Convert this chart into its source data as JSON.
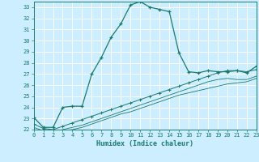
{
  "xlabel": "Humidex (Indice chaleur)",
  "background_color": "#cceeff",
  "grid_color": "#ffffff",
  "line_color": "#1a7a6e",
  "xlim": [
    0,
    23
  ],
  "ylim": [
    22,
    33.5
  ],
  "yticks": [
    22,
    23,
    24,
    25,
    26,
    27,
    28,
    29,
    30,
    31,
    32,
    33
  ],
  "xticks": [
    0,
    1,
    2,
    3,
    4,
    5,
    6,
    7,
    8,
    9,
    10,
    11,
    12,
    13,
    14,
    15,
    16,
    17,
    18,
    19,
    20,
    21,
    22,
    23
  ],
  "series1_x": [
    0,
    1,
    2,
    3,
    4,
    5,
    6,
    7,
    8,
    9,
    10,
    11,
    12,
    13,
    14,
    15,
    16,
    17,
    18,
    19,
    20,
    21,
    22,
    23
  ],
  "series1_y": [
    23.1,
    22.2,
    22.2,
    24.0,
    24.1,
    24.1,
    27.0,
    28.5,
    30.3,
    31.5,
    33.2,
    33.5,
    33.0,
    32.8,
    32.6,
    28.9,
    27.2,
    27.1,
    27.3,
    27.2,
    27.2,
    27.3,
    27.1,
    27.7
  ],
  "series2_x": [
    0,
    1,
    2,
    3,
    4,
    5,
    6,
    7,
    8,
    9,
    10,
    11,
    12,
    13,
    14,
    15,
    16,
    17,
    18,
    19,
    20,
    21,
    22,
    23
  ],
  "series2_y": [
    22.5,
    22.1,
    22.0,
    22.3,
    22.6,
    22.9,
    23.2,
    23.5,
    23.8,
    24.1,
    24.4,
    24.7,
    25.0,
    25.3,
    25.6,
    25.9,
    26.2,
    26.5,
    26.8,
    27.1,
    27.3,
    27.3,
    27.2,
    27.4
  ],
  "series3_x": [
    0,
    1,
    2,
    3,
    4,
    5,
    6,
    7,
    8,
    9,
    10,
    11,
    12,
    13,
    14,
    15,
    16,
    17,
    18,
    19,
    20,
    21,
    22,
    23
  ],
  "series3_y": [
    22.2,
    21.9,
    21.8,
    22.0,
    22.2,
    22.4,
    22.7,
    23.0,
    23.3,
    23.6,
    23.9,
    24.2,
    24.5,
    24.8,
    25.1,
    25.4,
    25.7,
    26.0,
    26.3,
    26.5,
    26.6,
    26.5,
    26.5,
    26.8
  ],
  "series4_x": [
    0,
    1,
    2,
    3,
    4,
    5,
    6,
    7,
    8,
    9,
    10,
    11,
    12,
    13,
    14,
    15,
    16,
    17,
    18,
    19,
    20,
    21,
    22,
    23
  ],
  "series4_y": [
    22.0,
    21.8,
    21.7,
    21.9,
    22.0,
    22.2,
    22.5,
    22.8,
    23.1,
    23.4,
    23.6,
    23.9,
    24.2,
    24.5,
    24.8,
    25.1,
    25.3,
    25.5,
    25.7,
    25.9,
    26.1,
    26.2,
    26.3,
    26.6
  ]
}
